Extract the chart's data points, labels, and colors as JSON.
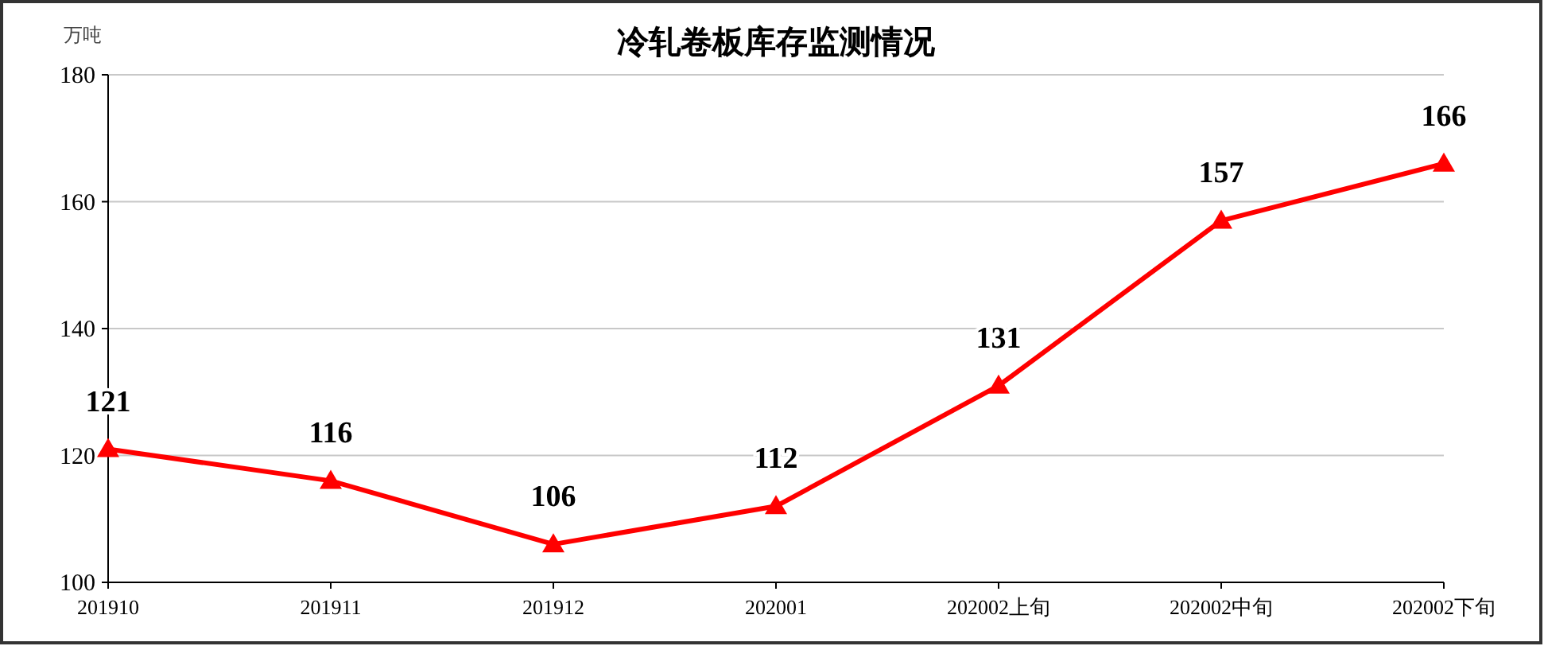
{
  "chart_data": {
    "type": "line",
    "title": "冷轧卷板库存监测情况",
    "ylabel": "万吨",
    "categories": [
      "201910",
      "201911",
      "201912",
      "202001",
      "202002上旬",
      "202002中旬",
      "202002下旬"
    ],
    "series": [
      {
        "color": "#ff0000",
        "values": [
          121,
          116,
          106,
          112,
          131,
          157,
          166
        ]
      }
    ],
    "ylim": [
      100,
      180
    ],
    "yticks": [
      100,
      120,
      140,
      160,
      180
    ],
    "grid": "y",
    "marker": "triangle",
    "line_style": "solid",
    "data_labels": true
  }
}
